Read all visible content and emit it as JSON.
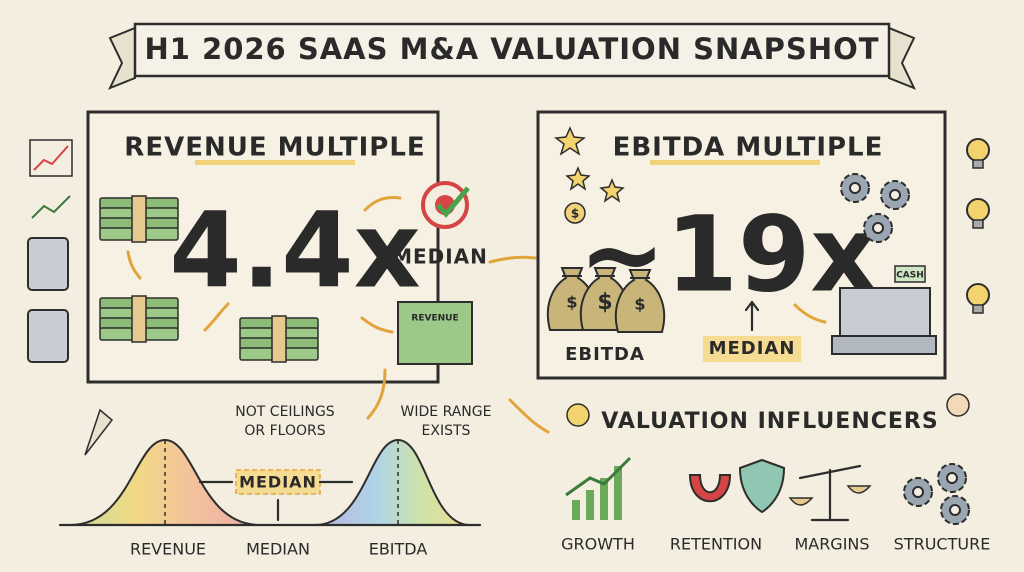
{
  "header": {
    "title": "H1 2026 SAAS M&A VALUATION SNAPSHOT"
  },
  "revenue_panel": {
    "title": "REVENUE MULTIPLE",
    "multiple": "4.4x",
    "median_label": "MEDIAN",
    "stack_label": "REVENUE"
  },
  "ebitda_panel": {
    "title": "EBITDA MULTIPLE",
    "multiple": "~19x",
    "bag_label": "EBITDA",
    "median_label": "MEDIAN",
    "register_label": "CASH",
    "bag_symbol": "$"
  },
  "distribution": {
    "note_left": [
      "NOT CEILINGS",
      "OR FLOORS"
    ],
    "note_right": [
      "WIDE RANGE",
      "EXISTS"
    ],
    "center_label": "MEDIAN",
    "axis_labels": [
      "REVENUE",
      "MEDIAN",
      "EBITDA"
    ]
  },
  "influencers": {
    "title": "VALUATION INFLUENCERS",
    "items": [
      "GROWTH",
      "RETENTION",
      "MARGINS",
      "STRUCTURE"
    ]
  }
}
